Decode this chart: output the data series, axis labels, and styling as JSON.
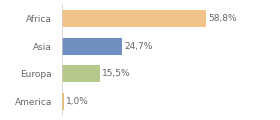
{
  "categories": [
    "Africa",
    "Asia",
    "Europa",
    "America"
  ],
  "values": [
    58.8,
    24.7,
    15.5,
    1.0
  ],
  "bar_colors": [
    "#f2c48a",
    "#6e8fc0",
    "#b5c98a",
    "#e8c060"
  ],
  "labels": [
    "58,8%",
    "24,7%",
    "15,5%",
    "1,0%"
  ],
  "background_color": "#ffffff",
  "xlim": [
    0,
    75
  ],
  "bar_height": 0.62,
  "label_fontsize": 6.5,
  "tick_fontsize": 6.5,
  "text_color": "#666666"
}
